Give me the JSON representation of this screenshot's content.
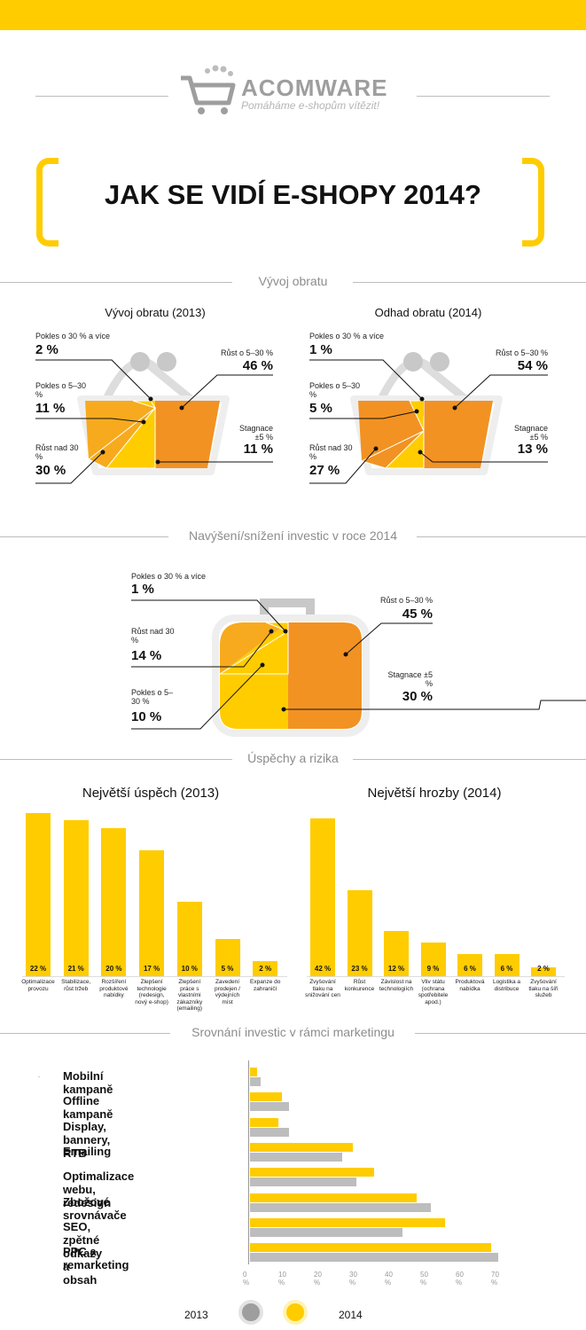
{
  "brand": {
    "name": "ACOMWARE",
    "tagline": "Pomáháme e-shopům vítězit!"
  },
  "main_title": "JAK SE VIDÍ E-SHOPY 2014?",
  "colors": {
    "yellow": "#ffcc00",
    "orange": "#f29222",
    "amber": "#f7aa1e",
    "gray": "#bdbdbd"
  },
  "sections": {
    "turnover": "Vývoj obratu",
    "investment": "Navýšení/snížení investic v roce 2014",
    "success": "Úspěchy a rizika",
    "marketing": "Srovnání investic v rámci marketingu"
  },
  "chart_data": [
    {
      "type": "pie",
      "title": "Vývoj obratu (2013)",
      "slices": [
        {
          "label": "Pokles o 30 % a více",
          "value": 2,
          "text": "2 %",
          "color": "#ffcc00"
        },
        {
          "label": "Pokles o 5–30 %",
          "value": 11,
          "text": "11 %",
          "color": "#ffcc00"
        },
        {
          "label": "Růst nad 30 %",
          "value": 30,
          "text": "30 %",
          "color": "#f7aa1e"
        },
        {
          "label": "Stagnace ±5 %",
          "value": 11,
          "text": "11 %",
          "color": "#ffcc00"
        },
        {
          "label": "Růst o 5–30 %",
          "value": 46,
          "text": "46 %",
          "color": "#f29222"
        }
      ]
    },
    {
      "type": "pie",
      "title": "Odhad obratu (2014)",
      "slices": [
        {
          "label": "Pokles o 30 % a více",
          "value": 1,
          "text": "1 %",
          "color": "#ffcc00"
        },
        {
          "label": "Pokles o 5–30 %",
          "value": 5,
          "text": "5 %",
          "color": "#ffcc00"
        },
        {
          "label": "Růst nad 30 %",
          "value": 27,
          "text": "27 %",
          "color": "#f29222"
        },
        {
          "label": "Stagnace ±5 %",
          "value": 13,
          "text": "13 %",
          "color": "#ffcc00"
        },
        {
          "label": "Růst o 5–30 %",
          "value": 54,
          "text": "54 %",
          "color": "#f29222"
        }
      ]
    },
    {
      "type": "pie",
      "title": "",
      "slices": [
        {
          "label": "Pokles o 30 % a více",
          "value": 1,
          "text": "1 %",
          "color": "#ffcc00"
        },
        {
          "label": "Růst nad 30 %",
          "value": 14,
          "text": "14 %",
          "color": "#f7aa1e"
        },
        {
          "label": "Pokles o 5–30 %",
          "value": 10,
          "text": "10 %",
          "color": "#ffcc00"
        },
        {
          "label": "Stagnace ±5 %",
          "value": 30,
          "text": "30 %",
          "color": "#ffcc00"
        },
        {
          "label": "Růst o 5–30 %",
          "value": 45,
          "text": "45 %",
          "color": "#f29222"
        }
      ]
    },
    {
      "type": "bar",
      "title": "Největší úspěch (2013)",
      "categories": [
        "Optimalizace provozu",
        "Stabilizace, růst tržeb",
        "Rozšíření produktové nabídky",
        "Zlepšení technologie (redesign, nový e-shop)",
        "Zlepšení práce s vlastními zákazníky (emailing)",
        "Zavedení prodejen / výdejních míst",
        "Expanze do zahraničí"
      ],
      "values": [
        22,
        21,
        20,
        17,
        10,
        5,
        2
      ],
      "labels": [
        "22 %",
        "21 %",
        "20 %",
        "17 %",
        "10 %",
        "5 %",
        "2 %"
      ],
      "ylim": [
        0,
        22
      ]
    },
    {
      "type": "bar",
      "title": "Největší hrozby (2014)",
      "categories": [
        "Zvyšování tlaku na snižování cen",
        "Růst konkurence",
        "Závislost na technologiích",
        "Vliv státu (ochrana spotřebitele apod.)",
        "Produktová nabídka",
        "Logistika a distribuce",
        "Zvyšování tlaku na šíři služeb"
      ],
      "values": [
        42,
        23,
        12,
        9,
        6,
        6,
        2
      ],
      "labels": [
        "42 %",
        "23 %",
        "12 %",
        "9 %",
        "6 %",
        "6 %",
        "2 %"
      ],
      "ylim": [
        0,
        42
      ]
    },
    {
      "type": "bar",
      "title": "",
      "categories": [
        "Mobilní kampaně",
        "Offline kampaně",
        "Display, bannery, RTB",
        "Emailing",
        "Optimalizace webu, redesign",
        "Zbožové srovnávače",
        "SEO, zpětné odkazy a obsah",
        "PPC a remarketing"
      ],
      "series": [
        {
          "name": "2014",
          "values": [
            2,
            9,
            8,
            29,
            35,
            47,
            55,
            68
          ]
        },
        {
          "name": "2013",
          "values": [
            3,
            11,
            11,
            26,
            30,
            51,
            43,
            70
          ]
        }
      ],
      "xticks": [
        "0 %",
        "10 %",
        "20 %",
        "30 %",
        "40 %",
        "50 %",
        "60 %",
        "70 %"
      ],
      "xlim": [
        0,
        70
      ],
      "legend_years": [
        "2013",
        "2014"
      ]
    }
  ]
}
